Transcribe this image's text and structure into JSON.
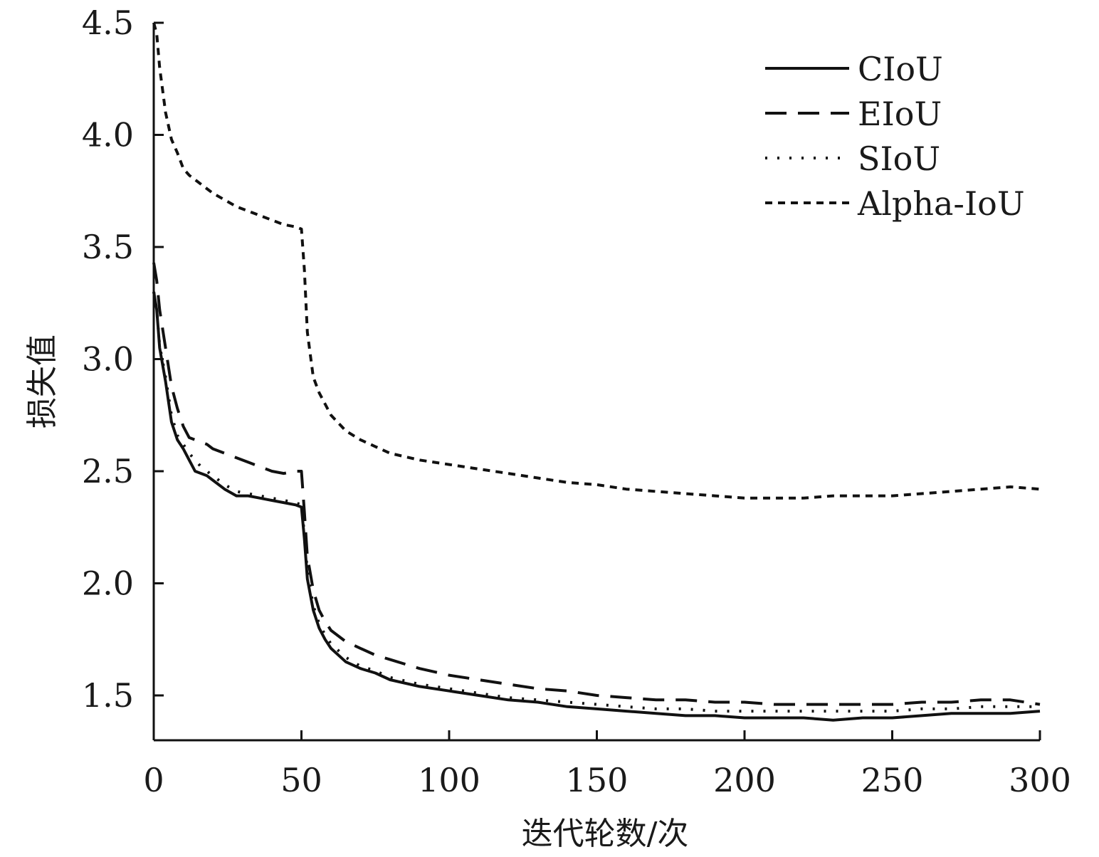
{
  "chart_data": {
    "type": "line",
    "xlabel": "迭代轮数/次",
    "ylabel": "损失值",
    "xlim": [
      0,
      300
    ],
    "ylim": [
      1.3,
      4.5
    ],
    "xticks": [
      0,
      50,
      100,
      150,
      200,
      250,
      300
    ],
    "yticks": [
      1.5,
      2.0,
      2.5,
      3.0,
      3.5,
      4.0,
      4.5
    ],
    "xtick_labels": [
      "0",
      "50",
      "100",
      "150",
      "200",
      "250",
      "300"
    ],
    "ytick_labels": [
      "1.5",
      "2.0",
      "2.5",
      "3.0",
      "3.5",
      "4.0",
      "4.5"
    ],
    "grid": false,
    "legend_position": "top-right",
    "x": [
      0,
      1,
      2,
      4,
      6,
      8,
      10,
      12,
      14,
      16,
      18,
      20,
      24,
      28,
      32,
      36,
      40,
      44,
      48,
      50,
      51,
      52,
      54,
      56,
      58,
      60,
      65,
      70,
      75,
      80,
      90,
      100,
      110,
      120,
      130,
      140,
      150,
      160,
      170,
      180,
      190,
      200,
      210,
      220,
      230,
      240,
      250,
      260,
      270,
      280,
      290,
      300
    ],
    "series": [
      {
        "name": "CIoU",
        "style": "solid",
        "color": "#111111",
        "values": [
          3.3,
          3.22,
          3.05,
          2.9,
          2.72,
          2.64,
          2.6,
          2.55,
          2.5,
          2.49,
          2.48,
          2.46,
          2.42,
          2.39,
          2.39,
          2.38,
          2.37,
          2.36,
          2.35,
          2.34,
          2.2,
          2.02,
          1.88,
          1.8,
          1.75,
          1.71,
          1.65,
          1.62,
          1.6,
          1.57,
          1.54,
          1.52,
          1.5,
          1.48,
          1.47,
          1.45,
          1.44,
          1.43,
          1.42,
          1.41,
          1.41,
          1.4,
          1.4,
          1.4,
          1.39,
          1.4,
          1.4,
          1.41,
          1.42,
          1.42,
          1.42,
          1.43
        ]
      },
      {
        "name": "EIoU",
        "style": "dashed",
        "color": "#111111",
        "values": [
          3.43,
          3.35,
          3.22,
          3.05,
          2.88,
          2.78,
          2.7,
          2.65,
          2.64,
          2.63,
          2.62,
          2.6,
          2.58,
          2.56,
          2.54,
          2.52,
          2.5,
          2.49,
          2.5,
          2.5,
          2.32,
          2.12,
          1.97,
          1.88,
          1.83,
          1.79,
          1.74,
          1.71,
          1.68,
          1.66,
          1.62,
          1.59,
          1.57,
          1.55,
          1.53,
          1.52,
          1.5,
          1.49,
          1.48,
          1.48,
          1.47,
          1.47,
          1.46,
          1.46,
          1.46,
          1.46,
          1.46,
          1.47,
          1.47,
          1.48,
          1.48,
          1.46
        ]
      },
      {
        "name": "SIoU",
        "style": "dotted",
        "color": "#111111",
        "values": [
          3.3,
          3.22,
          3.06,
          2.92,
          2.75,
          2.66,
          2.62,
          2.58,
          2.55,
          2.52,
          2.5,
          2.48,
          2.44,
          2.41,
          2.4,
          2.39,
          2.38,
          2.37,
          2.36,
          2.35,
          2.22,
          2.05,
          1.9,
          1.82,
          1.77,
          1.73,
          1.67,
          1.63,
          1.61,
          1.58,
          1.55,
          1.53,
          1.51,
          1.49,
          1.48,
          1.47,
          1.46,
          1.45,
          1.44,
          1.44,
          1.43,
          1.43,
          1.43,
          1.43,
          1.43,
          1.43,
          1.43,
          1.44,
          1.44,
          1.45,
          1.45,
          1.45
        ]
      },
      {
        "name": "Alpha-IoU",
        "style": "shortdash",
        "color": "#111111",
        "values": [
          4.5,
          4.45,
          4.3,
          4.1,
          3.98,
          3.92,
          3.85,
          3.82,
          3.8,
          3.78,
          3.76,
          3.74,
          3.71,
          3.68,
          3.66,
          3.64,
          3.62,
          3.6,
          3.59,
          3.58,
          3.4,
          3.12,
          2.92,
          2.85,
          2.8,
          2.75,
          2.68,
          2.64,
          2.61,
          2.58,
          2.55,
          2.53,
          2.51,
          2.49,
          2.47,
          2.45,
          2.44,
          2.42,
          2.41,
          2.4,
          2.39,
          2.38,
          2.38,
          2.38,
          2.39,
          2.39,
          2.39,
          2.4,
          2.41,
          2.42,
          2.43,
          2.42
        ]
      }
    ]
  }
}
